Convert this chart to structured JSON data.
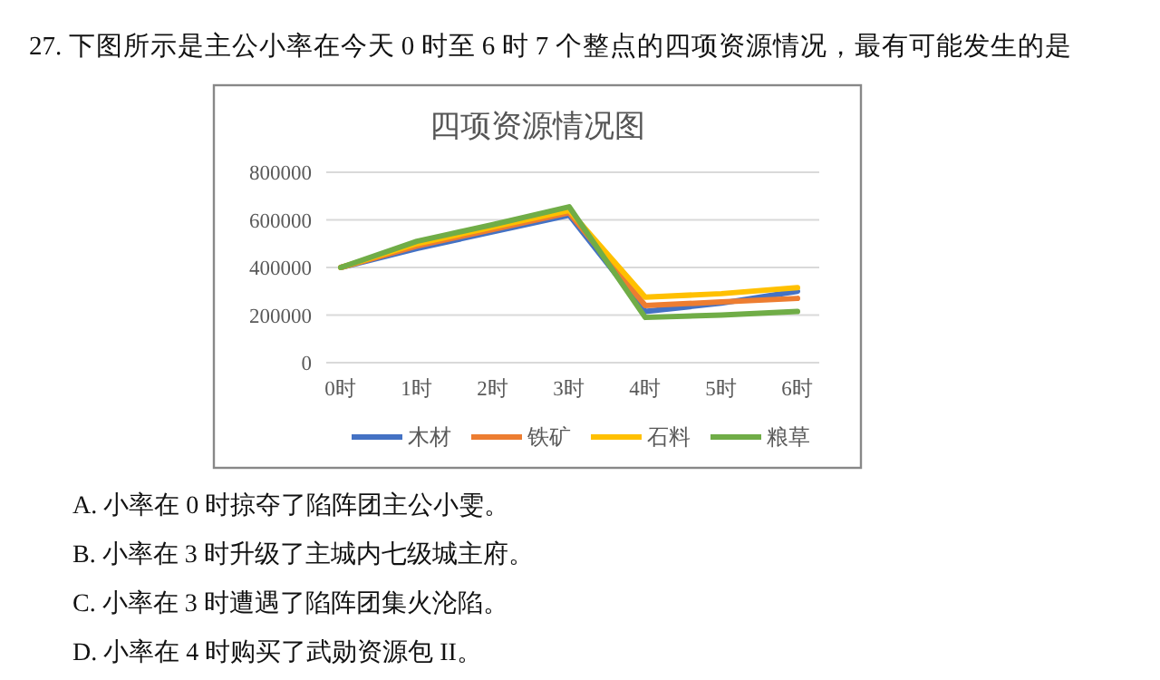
{
  "chart_data": {
    "type": "line",
    "title": "四项资源情况图",
    "categories": [
      "0时",
      "1时",
      "2时",
      "3时",
      "4时",
      "5时",
      "6时"
    ],
    "series": [
      {
        "name": "木材",
        "color": "#4472c4",
        "values": [
          400000,
          480000,
          550000,
          620000,
          215000,
          250000,
          300000
        ]
      },
      {
        "name": "铁矿",
        "color": "#ed7d31",
        "values": [
          400000,
          490000,
          560000,
          630000,
          240000,
          255000,
          270000
        ]
      },
      {
        "name": "石料",
        "color": "#ffc000",
        "values": [
          400000,
          500000,
          570000,
          640000,
          275000,
          290000,
          315000
        ]
      },
      {
        "name": "粮草",
        "color": "#70ad47",
        "values": [
          400000,
          510000,
          580000,
          655000,
          190000,
          200000,
          215000
        ]
      }
    ],
    "ylim": [
      0,
      800000
    ],
    "yticks": [
      0,
      200000,
      400000,
      600000,
      800000
    ],
    "grid": "y",
    "legend": "bottom",
    "marker": "none",
    "line_style": "solid",
    "annotations": [
      "27. 下图所示是主公小率在今天 0 时至 6 时 7 个整点的四项资源情况，最有可能发生的是",
      "A. 小率在 0 时掠夺了陷阵团主公小雯。",
      "B. 小率在 3 时升级了主城内七级城主府。",
      "C. 小率在 3 时遭遇了陷阵团集火沦陷。",
      "D. 小率在 4 时购买了武勋资源包 II。"
    ]
  }
}
